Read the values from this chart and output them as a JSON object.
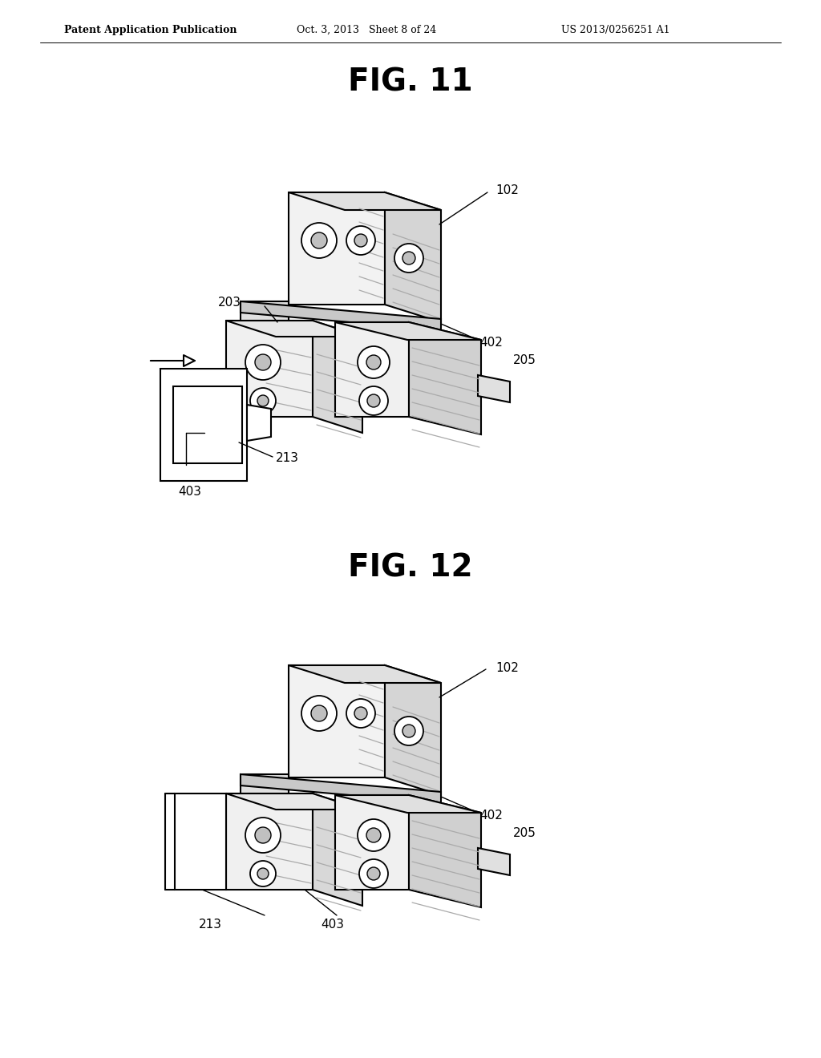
{
  "page_bg": "#ffffff",
  "header_left": "Patent Application Publication",
  "header_mid": "Oct. 3, 2013   Sheet 8 of 24",
  "header_right": "US 2013/0256251 A1",
  "fig11_title": "FIG. 11",
  "fig12_title": "FIG. 12",
  "line_color": "#000000",
  "text_color": "#000000",
  "shade_light": "#e8e8e8",
  "shade_mid": "#d0d0d0",
  "shade_dark": "#b8b8b8",
  "hatch_color": "#999999"
}
